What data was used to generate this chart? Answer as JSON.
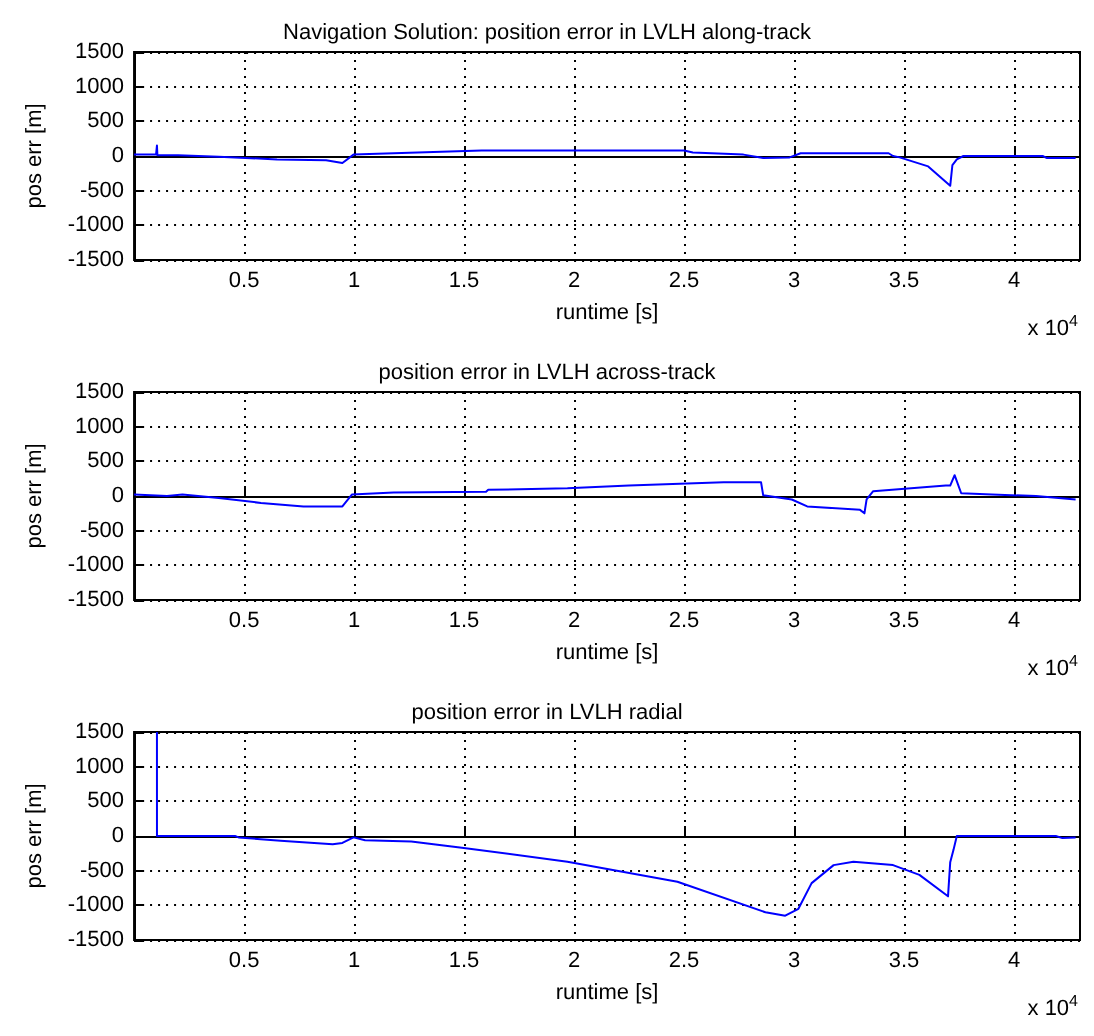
{
  "chart_data": [
    {
      "type": "line",
      "title": "Navigation Solution: position error in LVLH along-track",
      "xlabel": "runtime [s]",
      "ylabel": "pos err [m]",
      "annotations": [
        "x 10$^{4}$"
      ],
      "color": "#0000ff",
      "marker": "none",
      "grid": true,
      "x": [
        0,
        0.1,
        0.104,
        0.106,
        0.2,
        0.385,
        0.65,
        0.873,
        0.947,
        0.9975,
        1.58,
        2.5,
        2.54,
        2.77,
        2.86,
        2.98,
        3.03,
        3.2,
        3.43,
        3.45,
        3.48,
        3.61,
        3.71,
        3.72,
        3.74,
        3.77,
        4.13,
        4.15,
        4.28
      ],
      "values": [
        20,
        20,
        150,
        10,
        10,
        -10,
        -50,
        -60,
        -100,
        20,
        80,
        80,
        50,
        20,
        -30,
        -20,
        40,
        40,
        40,
        0,
        -20,
        -150,
        -430,
        -130,
        -50,
        0,
        0,
        -30,
        -30
      ],
      "xlim": [
        0,
        4.3
      ],
      "ylim": [
        -1500,
        1500
      ],
      "xticks": [
        0.5,
        1,
        1.5,
        2,
        2.5,
        3,
        3.5,
        4
      ],
      "yticks": [
        -1500,
        -1000,
        -500,
        0,
        500,
        1000,
        1500
      ]
    },
    {
      "type": "line",
      "title": "position error in LVLH across-track",
      "xlabel": "runtime [s]",
      "ylabel": "pos err [m]",
      "annotations": [
        "x 10$^{4}$"
      ],
      "color": "#0000ff",
      "marker": "none",
      "grid": true,
      "x": [
        0,
        0.15,
        0.22,
        0.385,
        0.577,
        0.77,
        0.947,
        0.99,
        1.18,
        1.6,
        1.61,
        1.97,
        2.25,
        2.68,
        2.85,
        2.86,
        2.99,
        3.06,
        3.3,
        3.32,
        3.33,
        3.36,
        3.69,
        3.71,
        3.73,
        3.76,
        3.9,
        4.1,
        4.28
      ],
      "values": [
        20,
        0,
        20,
        -30,
        -100,
        -150,
        -150,
        20,
        50,
        60,
        90,
        110,
        150,
        200,
        200,
        10,
        -50,
        -150,
        -200,
        -250,
        -50,
        70,
        150,
        150,
        300,
        40,
        20,
        0,
        -50
      ],
      "xlim": [
        0,
        4.3
      ],
      "ylim": [
        -1500,
        1500
      ],
      "xticks": [
        0.5,
        1,
        1.5,
        2,
        2.5,
        3,
        3.5,
        4
      ],
      "yticks": [
        -1500,
        -1000,
        -500,
        0,
        500,
        1000,
        1500
      ]
    },
    {
      "type": "line",
      "title": "position error in LVLH radial",
      "xlabel": "runtime [s]",
      "ylabel": "pos err [m]",
      "annotations": [
        "x 10$^{4}$"
      ],
      "color": "#0000ff",
      "marker": "none",
      "grid": true,
      "x": [
        0.104,
        0.1041,
        0.459,
        0.475,
        0.666,
        0.903,
        0.947,
        0.9975,
        1.05,
        1.26,
        1.49,
        1.97,
        2.47,
        2.87,
        2.96,
        3.02,
        3.08,
        3.18,
        3.27,
        3.45,
        3.57,
        3.7,
        3.71,
        3.725,
        3.74,
        4.19,
        4.22,
        4.28
      ],
      "values": [
        1500,
        0,
        0,
        -20,
        -70,
        -120,
        -100,
        -20,
        -60,
        -80,
        -170,
        -370,
        -660,
        -1100,
        -1150,
        -1050,
        -680,
        -420,
        -370,
        -420,
        -560,
        -870,
        -380,
        -200,
        0,
        0,
        -30,
        -20
      ],
      "xlim": [
        0,
        4.3
      ],
      "ylim": [
        -1500,
        1500
      ],
      "xticks": [
        0.5,
        1,
        1.5,
        2,
        2.5,
        3,
        3.5,
        4
      ],
      "yticks": [
        -1500,
        -1000,
        -500,
        0,
        500,
        1000,
        1500
      ]
    }
  ]
}
